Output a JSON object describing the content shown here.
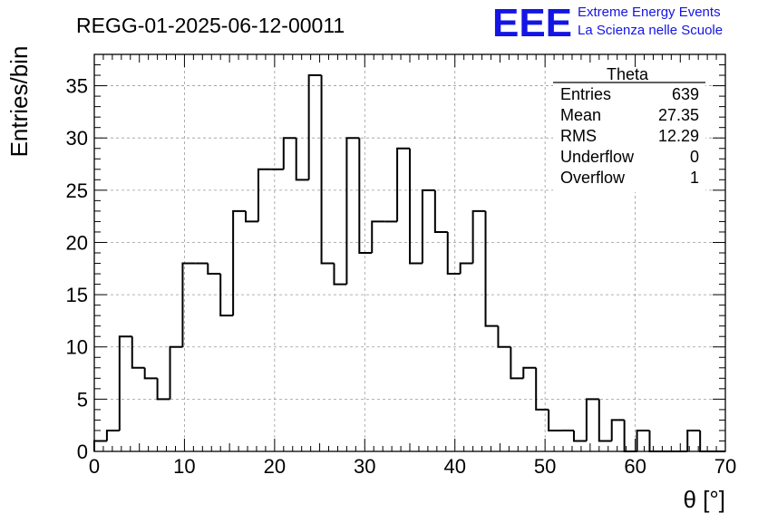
{
  "title": "REGG-01-2025-06-12-00011",
  "logo": {
    "mark": "EEE",
    "line1": "Extreme Energy Events",
    "line2": "La Scienza nelle Scuole",
    "color": "#1414e6"
  },
  "stats_box": {
    "title": "Theta",
    "rows": [
      {
        "label": "Entries",
        "value": "639"
      },
      {
        "label": "Mean",
        "value": "27.35"
      },
      {
        "label": "RMS",
        "value": "12.29"
      },
      {
        "label": "Underflow",
        "value": "0"
      },
      {
        "label": "Overflow",
        "value": "1"
      }
    ]
  },
  "chart_data": {
    "type": "bar",
    "histogram": true,
    "title": "REGG-01-2025-06-12-00011",
    "xlabel": "θ [°]",
    "ylabel": "Entries/bin",
    "xlim": [
      0,
      70
    ],
    "ylim": [
      0,
      38
    ],
    "grid": true,
    "bin_width": 1.4,
    "x_ticks": [
      0,
      10,
      20,
      30,
      40,
      50,
      60,
      70
    ],
    "y_ticks": [
      0,
      5,
      10,
      15,
      20,
      25,
      30,
      35
    ],
    "values": [
      1,
      2,
      11,
      8,
      7,
      5,
      10,
      18,
      18,
      17,
      13,
      23,
      22,
      27,
      27,
      30,
      26,
      36,
      18,
      16,
      30,
      19,
      22,
      22,
      29,
      18,
      25,
      21,
      17,
      18,
      23,
      12,
      10,
      7,
      8,
      4,
      2,
      2,
      1,
      5,
      1,
      3,
      0,
      2,
      0,
      0,
      0,
      2,
      0,
      0
    ]
  }
}
